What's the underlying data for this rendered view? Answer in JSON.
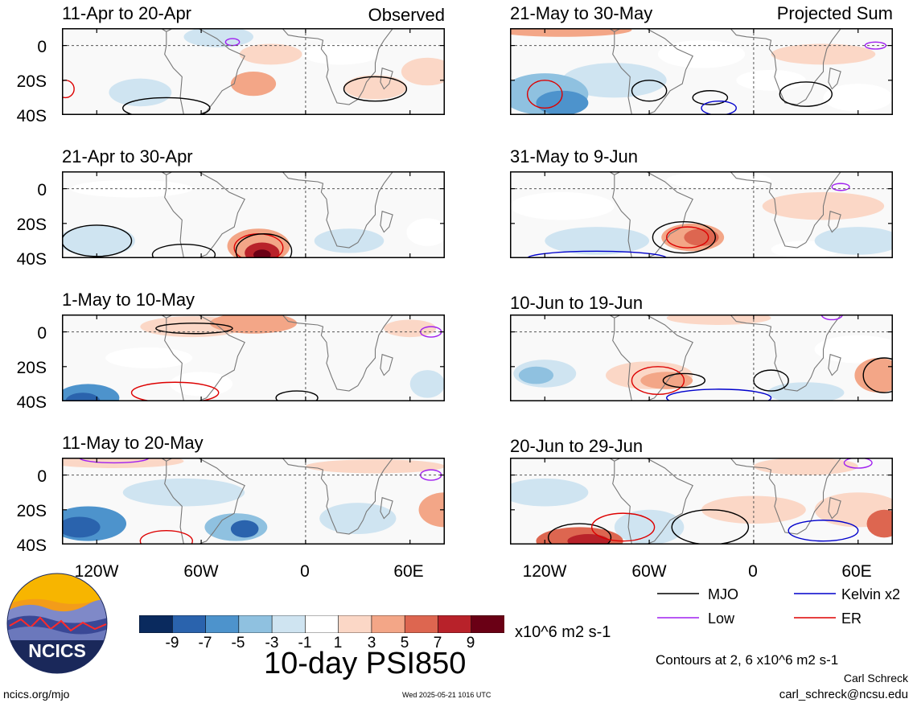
{
  "labels": {
    "observed": "Observed",
    "projected": "Projected Sum",
    "y_ticks": [
      "0",
      "20S",
      "40S"
    ],
    "x_ticks": [
      "120W",
      "60W",
      "0",
      "60E"
    ]
  },
  "panels": [
    {
      "title": "11-Apr to 20-Apr"
    },
    {
      "title": "21-Apr to 30-Apr"
    },
    {
      "title": "1-May to 10-May"
    },
    {
      "title": "11-May to 20-May"
    },
    {
      "title": "21-May to 30-May"
    },
    {
      "title": "31-May to 9-Jun"
    },
    {
      "title": "10-Jun to 19-Jun"
    },
    {
      "title": "20-Jun to 29-Jun"
    }
  ],
  "colorbar": {
    "colors": [
      "#0a2a5e",
      "#2a63ad",
      "#4d93cc",
      "#8fc1e0",
      "#cfe4f1",
      "#ffffff",
      "#fbd7c6",
      "#f3a687",
      "#dd6650",
      "#b8222a",
      "#6a0015"
    ],
    "labels": [
      "-9",
      "-7",
      "-5",
      "-3",
      "-1",
      "1",
      "3",
      "5",
      "7",
      "9"
    ],
    "units": "x10^6 m2 s-1",
    "title": "10-day PSI850"
  },
  "legend": [
    {
      "label": "MJO",
      "color": "#000000"
    },
    {
      "label": "Kelvin x2",
      "color": "#0000cc"
    },
    {
      "label": "Low",
      "color": "#a020f0"
    },
    {
      "label": "ER",
      "color": "#dd0000"
    }
  ],
  "contours_note": "Contours at 2, 6 x10^6 m2 s-1",
  "author": "Carl Schreck",
  "email": "carl_schreck@ncsu.edu",
  "url": "ncics.org/mjo",
  "timestamp": "Wed 2025-05-21 1016 UTC",
  "logo_text": "NCICS"
}
